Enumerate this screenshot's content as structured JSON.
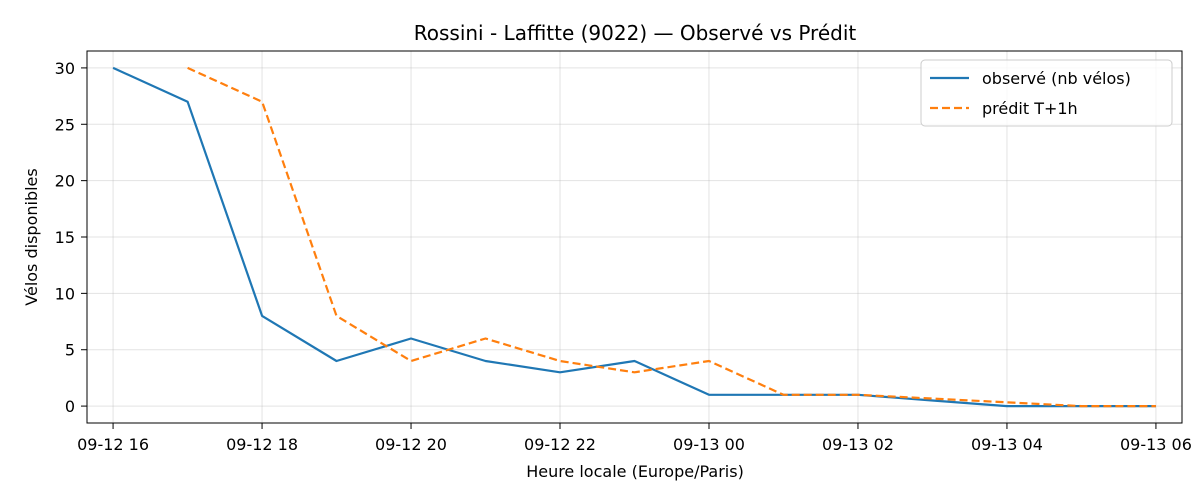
{
  "chart_data": {
    "type": "line",
    "title": "Rossini - Laffitte (9022) — Observé vs Prédit",
    "xlabel": "Heure locale (Europe/Paris)",
    "ylabel": "Vélos disponibles",
    "xlim": [
      -0.35,
      14.35
    ],
    "ylim": [
      -1.5,
      31.5
    ],
    "grid": true,
    "legend_position": "top-right",
    "x_ticks": [
      {
        "value": 0,
        "label": "09-12 16"
      },
      {
        "value": 2,
        "label": "09-12 18"
      },
      {
        "value": 4,
        "label": "09-12 20"
      },
      {
        "value": 6,
        "label": "09-12 22"
      },
      {
        "value": 8,
        "label": "09-13 00"
      },
      {
        "value": 10,
        "label": "09-13 02"
      },
      {
        "value": 12,
        "label": "09-13 04"
      },
      {
        "value": 14,
        "label": "09-13 06"
      }
    ],
    "y_ticks": [
      {
        "value": 0,
        "label": "0"
      },
      {
        "value": 5,
        "label": "5"
      },
      {
        "value": 10,
        "label": "10"
      },
      {
        "value": 15,
        "label": "15"
      },
      {
        "value": 20,
        "label": "20"
      },
      {
        "value": 25,
        "label": "25"
      },
      {
        "value": 30,
        "label": "30"
      }
    ],
    "series": [
      {
        "name": "observé (nb vélos)",
        "color": "#1f77b4",
        "style": "solid",
        "x": [
          0,
          1,
          2,
          3,
          4,
          5,
          6,
          7,
          8,
          9,
          10,
          11,
          12,
          13,
          14
        ],
        "values": [
          30,
          27,
          8,
          4,
          6,
          4,
          3,
          4,
          1,
          1,
          1,
          0.5,
          0,
          0,
          0
        ]
      },
      {
        "name": "prédit T+1h",
        "color": "#ff7f0e",
        "style": "dashed",
        "x": [
          1,
          2,
          3,
          4,
          5,
          6,
          7,
          8,
          9,
          10,
          13,
          14
        ],
        "values": [
          30,
          27,
          8,
          4,
          6,
          4,
          3,
          4,
          1,
          1,
          0,
          0
        ]
      }
    ]
  }
}
